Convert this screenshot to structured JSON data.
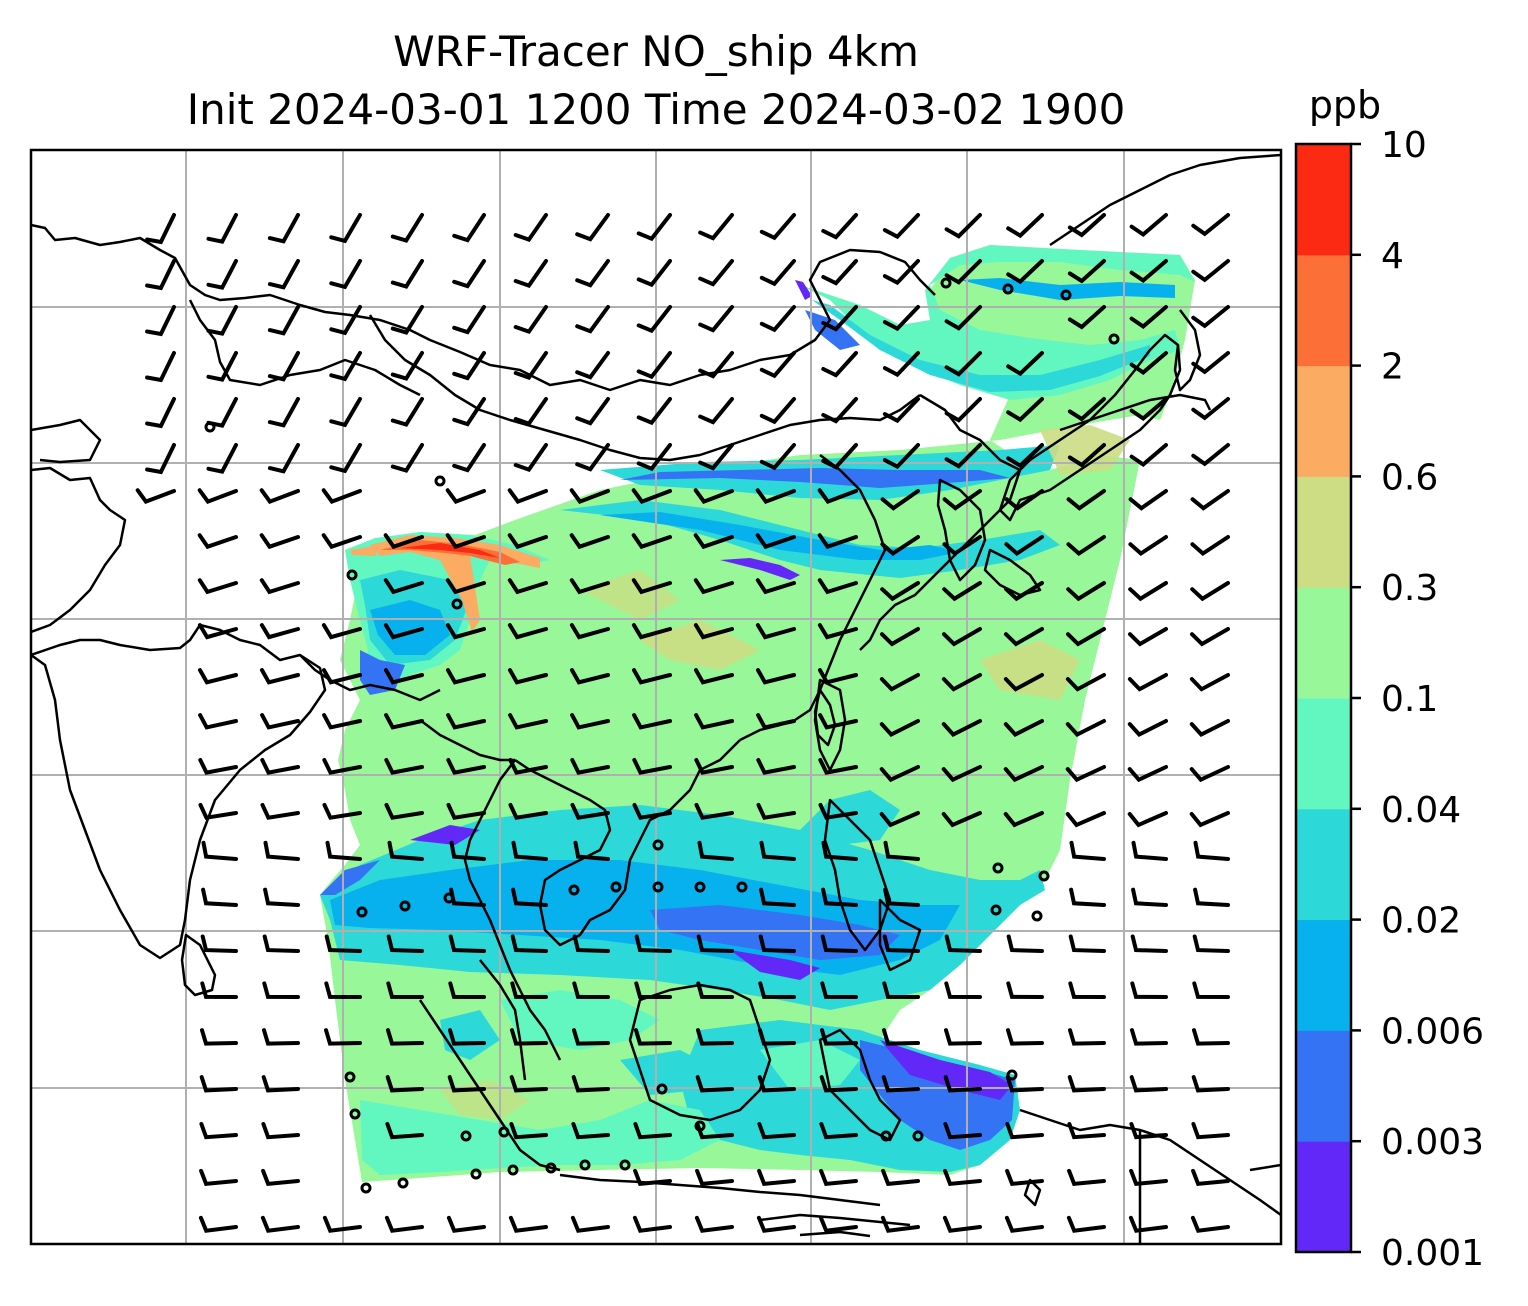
{
  "title": {
    "line1": "WRF-Tracer NO_ship 4km",
    "line2": "Init 2024-03-01 1200 Time 2024-03-02 1900"
  },
  "colorbar": {
    "unit": "ppb",
    "ticks": [
      "0.001",
      "0.003",
      "0.006",
      "0.02",
      "0.04",
      "0.1",
      "0.3",
      "0.6",
      "2",
      "4",
      "10"
    ],
    "colors": [
      "#6228f7",
      "#3473f3",
      "#06b1ed",
      "#2dd8d8",
      "#62f7c0",
      "#98f798",
      "#ccdd84",
      "#fcab63",
      "#fc7038",
      "#fc2a12"
    ]
  },
  "map": {
    "background": "#ffffff",
    "grid_color": "#b0b0b0",
    "coastline_color": "#000000",
    "wind_barb_color": "#000000"
  }
}
